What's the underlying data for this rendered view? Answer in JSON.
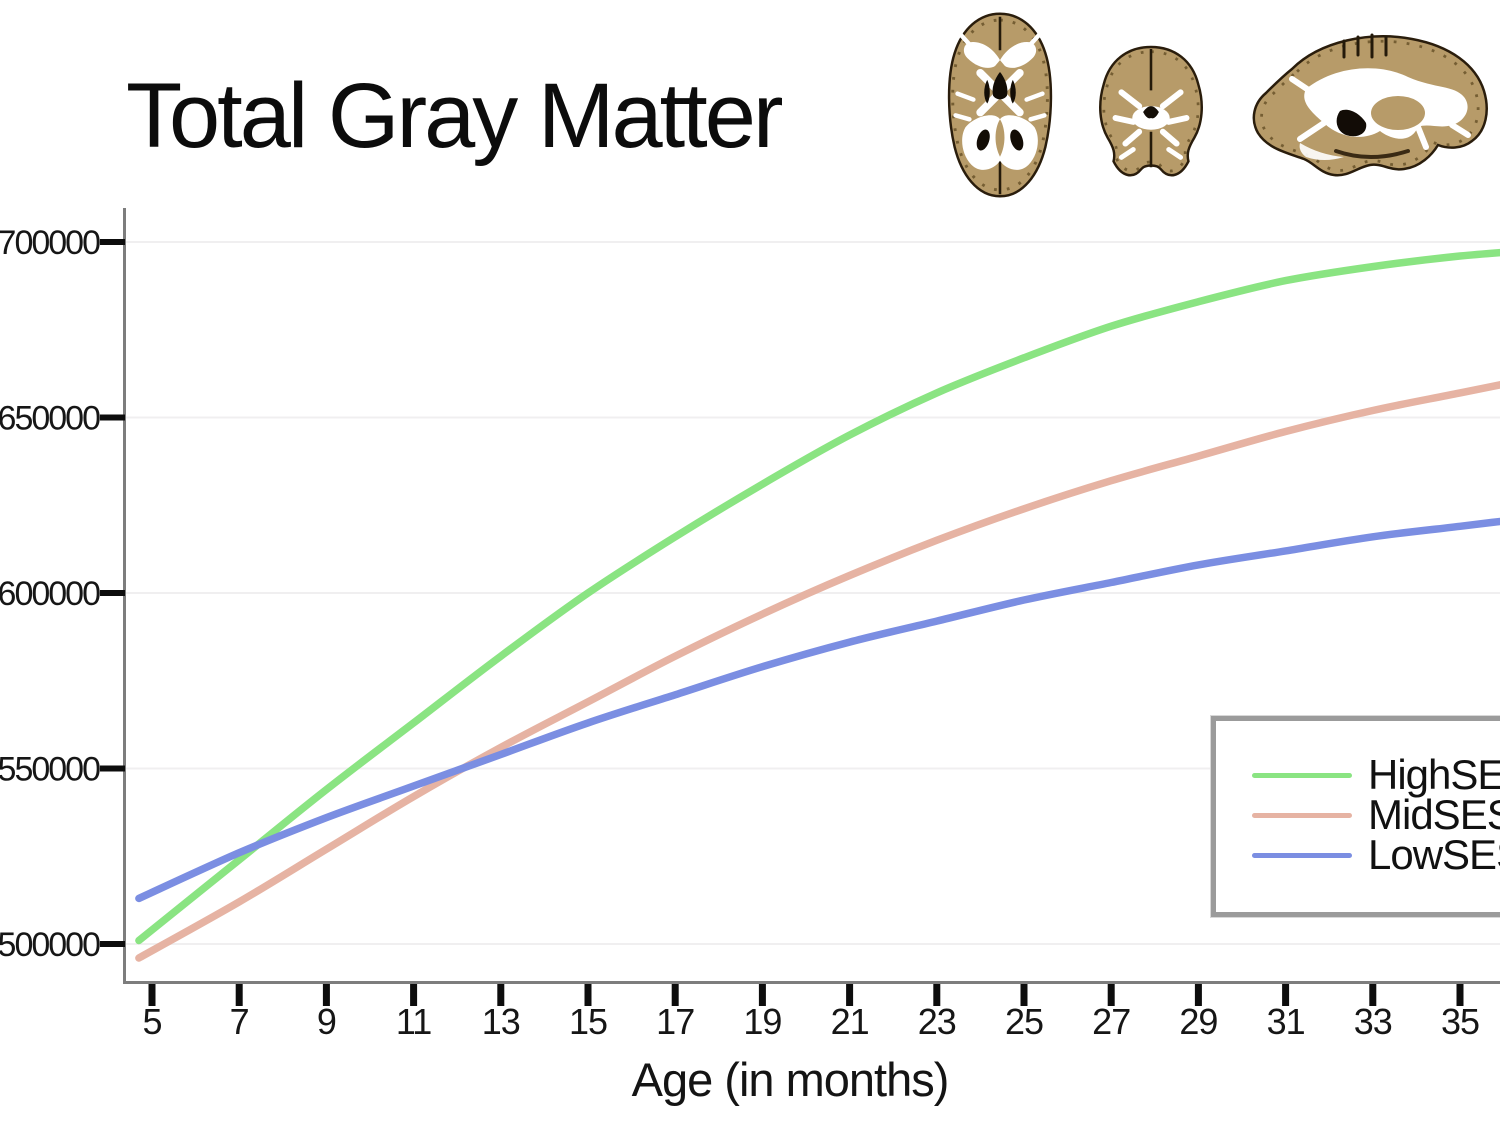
{
  "page": {
    "title": "Total Gray Matter"
  },
  "brains": [
    {
      "name": "axial-brain-slice"
    },
    {
      "name": "coronal-brain-slice"
    },
    {
      "name": "sagittal-brain-slice"
    }
  ],
  "legend": {
    "entries": [
      {
        "label": "HighSES",
        "color": "#8ae482"
      },
      {
        "label": "MidSES",
        "color": "#e6b3a3"
      },
      {
        "label": "LowSES",
        "color": "#7b8ee2"
      }
    ]
  },
  "chart_data": {
    "type": "line",
    "title": "Total Gray Matter",
    "xlabel": "Age (in months)",
    "ylabel": "",
    "grid": true,
    "legend_position": "lower right",
    "xlim": [
      4.4,
      36.0
    ],
    "ylim": [
      489000,
      711000
    ],
    "x_ticks": [
      5,
      7,
      9,
      11,
      13,
      15,
      17,
      19,
      21,
      23,
      25,
      27,
      29,
      31,
      33,
      35
    ],
    "y_tick_values": [
      500000,
      550000,
      600000,
      650000,
      700000
    ],
    "y_tick_labels": [
      "500000",
      "550000",
      "600000",
      "650000",
      "700000"
    ],
    "x": [
      4.7,
      7,
      9,
      11,
      13,
      15,
      17,
      19,
      21,
      23,
      25,
      27,
      29,
      31,
      33,
      35,
      37
    ],
    "series": [
      {
        "name": "HighSES",
        "color": "#8ae482",
        "values": [
          501000,
          524000,
          544000,
          563000,
          582000,
          600000,
          616000,
          631000,
          645000,
          657000,
          667000,
          676000,
          683000,
          689000,
          693000,
          696000,
          698000
        ]
      },
      {
        "name": "MidSES",
        "color": "#e6b3a3",
        "values": [
          496000,
          512000,
          527000,
          542000,
          556000,
          569000,
          582000,
          594000,
          605000,
          615000,
          624000,
          632000,
          639000,
          646000,
          652000,
          657000,
          662000
        ]
      },
      {
        "name": "LowSES",
        "color": "#7b8ee2",
        "values": [
          513000,
          526000,
          536000,
          545000,
          554000,
          563000,
          571000,
          579000,
          586000,
          592000,
          598000,
          603000,
          608000,
          612000,
          616000,
          619000,
          622000
        ]
      }
    ]
  }
}
